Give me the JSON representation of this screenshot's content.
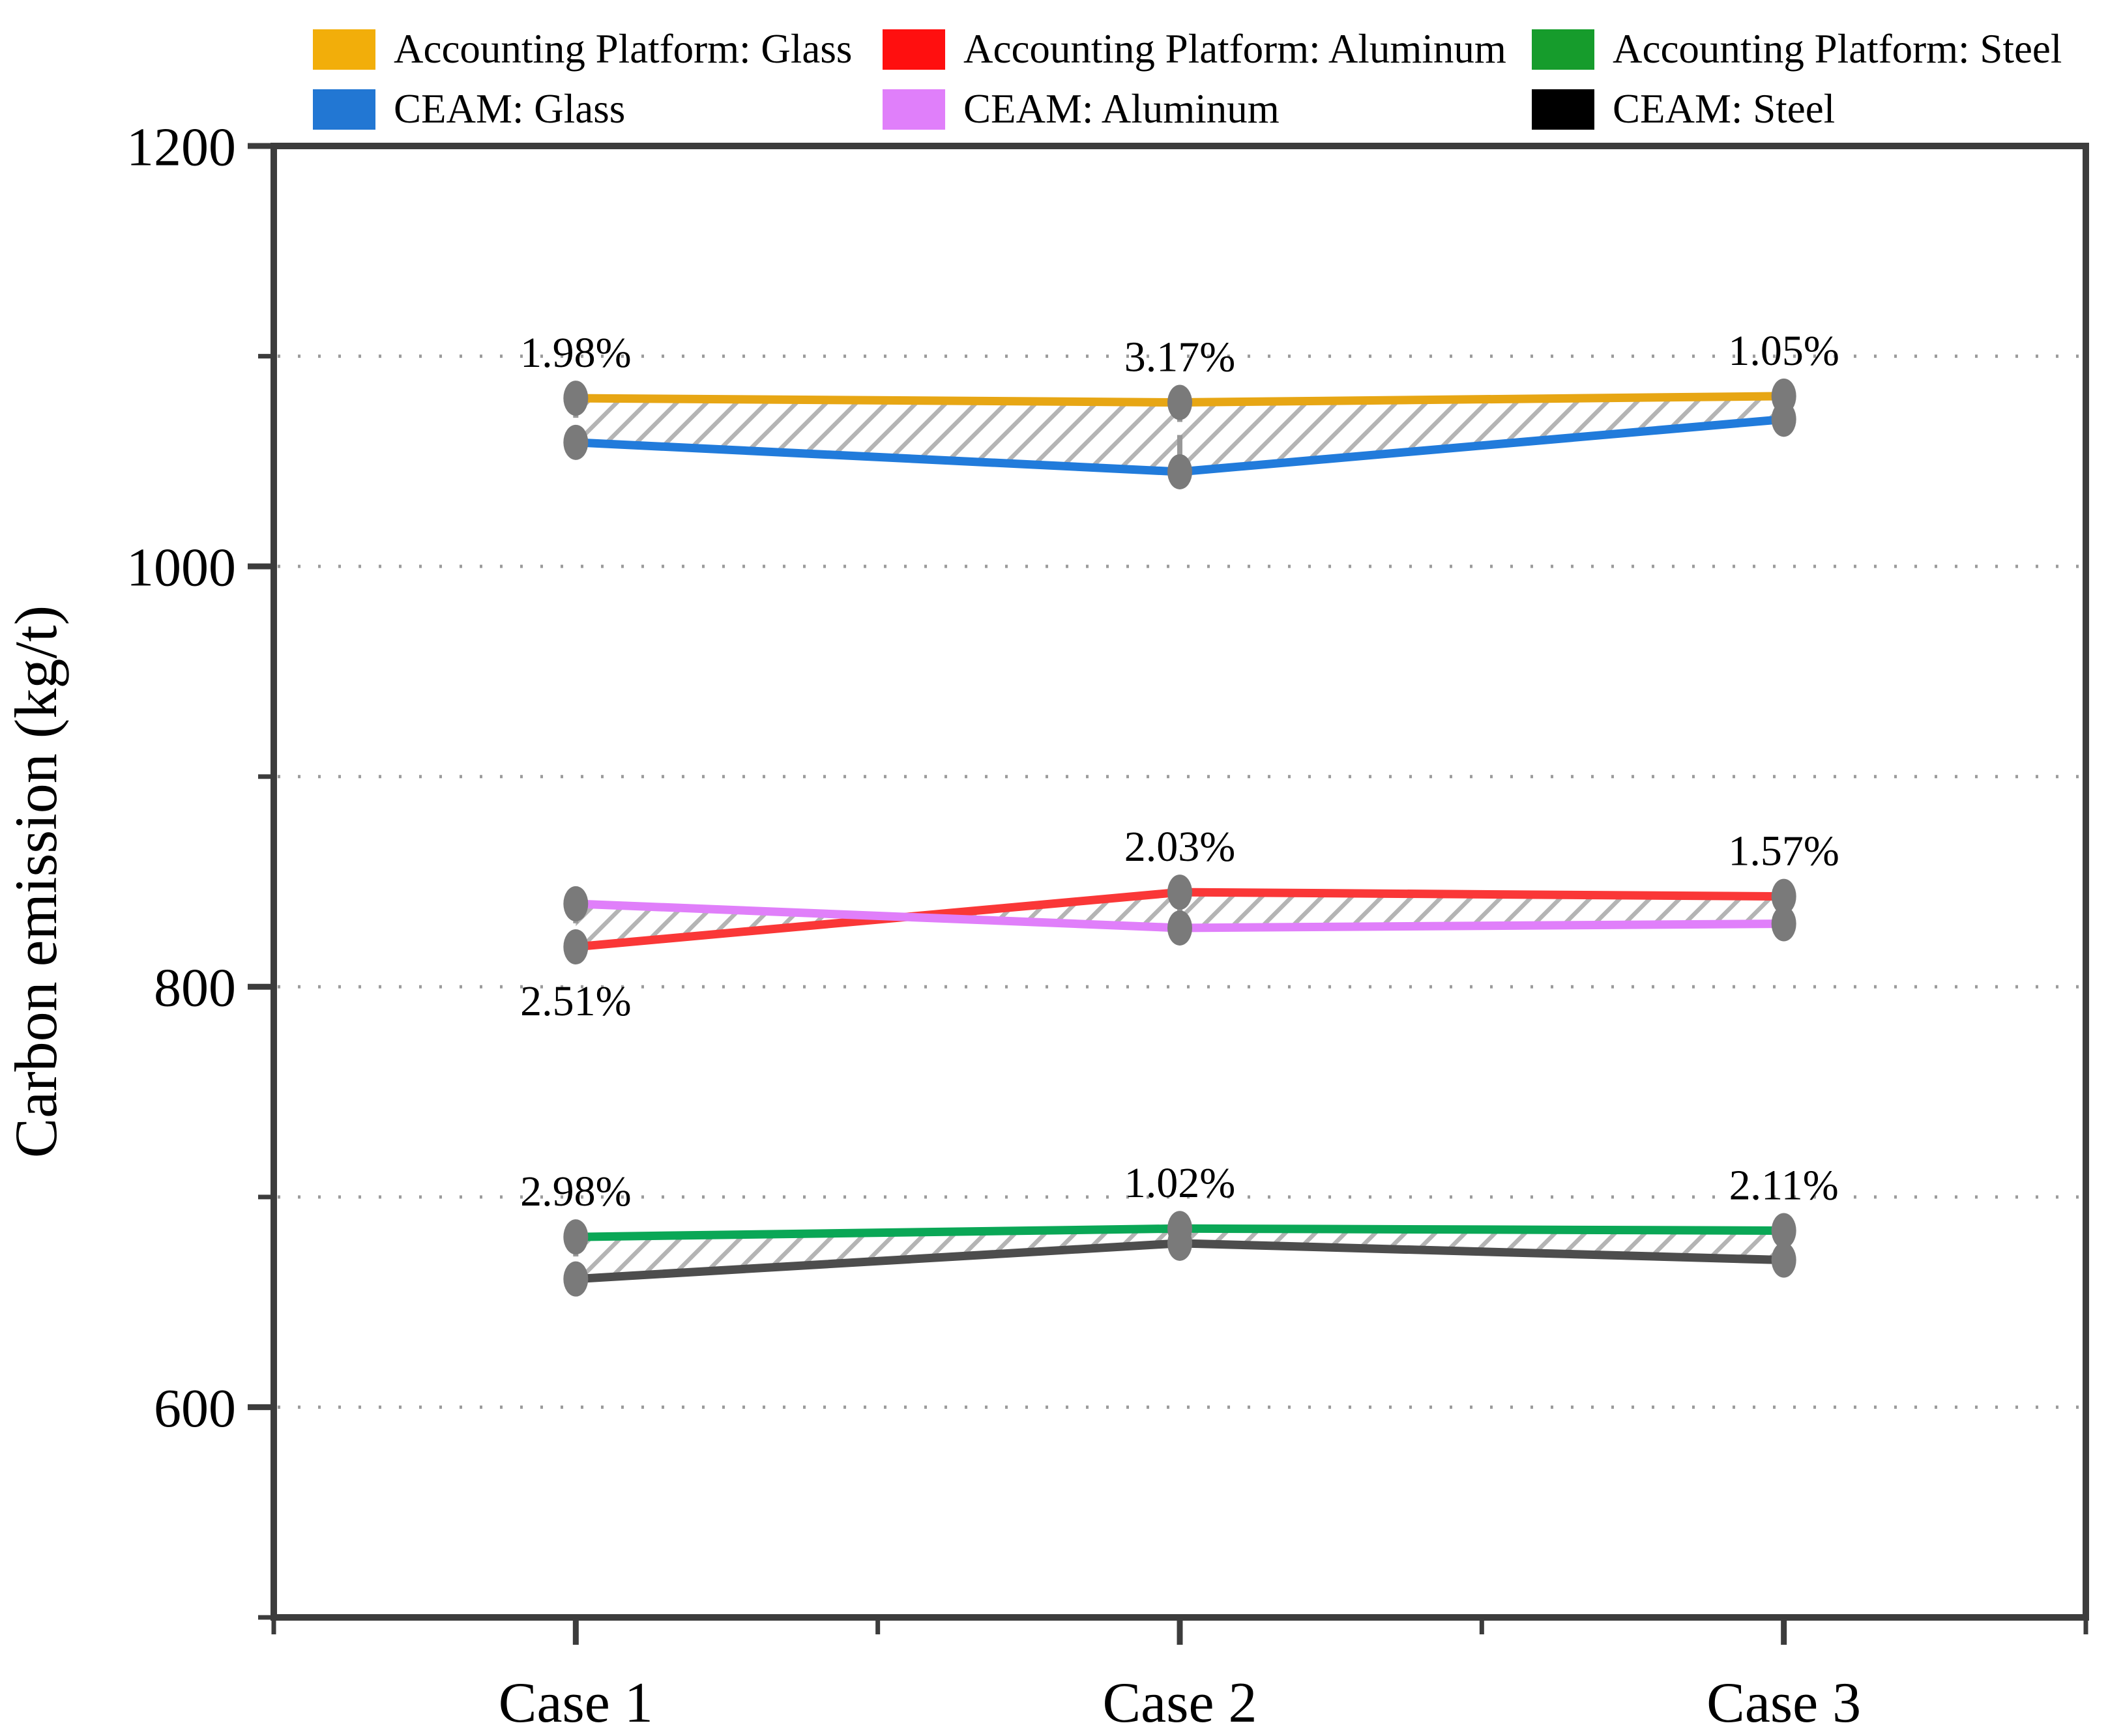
{
  "figure": {
    "ylabel": "Carbon emission (kg/t)",
    "legend": [
      {
        "label": "Accounting Platform: Glass",
        "color": "#F2AE0A"
      },
      {
        "label": "Accounting Platform: Aluminum",
        "color": "#FF0F0F"
      },
      {
        "label": "Accounting Platform: Steel",
        "color": "#169C2C"
      },
      {
        "label": "CEAM: Glass",
        "color": "#2277D3"
      },
      {
        "label": "CEAM: Aluminum",
        "color": "#E07FFA"
      },
      {
        "label": "CEAM: Steel",
        "color": "#000000"
      }
    ]
  },
  "chart_data": {
    "type": "line",
    "categories": [
      "Case 1",
      "Case 2",
      "Case 3"
    ],
    "xlabel": "",
    "ylabel": "Carbon emission (kg/t)",
    "ylim": [
      500,
      1200
    ],
    "yticks_major": [
      600,
      800,
      1000,
      1200
    ],
    "yticks_minor": [
      500,
      700,
      900,
      1100
    ],
    "grid_values": [
      600,
      700,
      800,
      900,
      1000,
      1100
    ],
    "grid_style": "dotted-horizontal",
    "legend_position": "top",
    "marker": {
      "shape": "ellipse",
      "color": "#7A7A7A"
    },
    "hatch": "/",
    "series": [
      {
        "name": "Accounting Platform: Glass",
        "color": "#E7A614",
        "values": [
          1080,
          1078,
          1081
        ]
      },
      {
        "name": "CEAM: Glass",
        "color": "#217BDB",
        "values": [
          1059,
          1045,
          1070
        ]
      },
      {
        "name": "Accounting Platform: Aluminum",
        "color": "#FA3737",
        "values": [
          819,
          845,
          843
        ]
      },
      {
        "name": "CEAM: Aluminum",
        "color": "#E07FFA",
        "values": [
          839.5,
          828,
          830
        ]
      },
      {
        "name": "Accounting Platform: Steel",
        "color": "#0AA756",
        "values": [
          681,
          685,
          684
        ]
      },
      {
        "name": "CEAM: Steel",
        "color": "#4D4D4D",
        "values": [
          661,
          678,
          670
        ]
      }
    ],
    "bands": [
      {
        "upper": "Accounting Platform: Glass",
        "lower": "CEAM: Glass",
        "annotations": [
          {
            "case": "Case 1",
            "text": "1.98%",
            "placement": "above"
          },
          {
            "case": "Case 2",
            "text": "3.17%",
            "placement": "above"
          },
          {
            "case": "Case 3",
            "text": "1.05%",
            "placement": "above"
          }
        ]
      },
      {
        "upper": "Accounting Platform: Aluminum",
        "lower": "CEAM: Aluminum",
        "annotations": [
          {
            "case": "Case 1",
            "text": "2.51%",
            "placement": "below"
          },
          {
            "case": "Case 2",
            "text": "2.03%",
            "placement": "above"
          },
          {
            "case": "Case 3",
            "text": "1.57%",
            "placement": "above"
          }
        ]
      },
      {
        "upper": "Accounting Platform: Steel",
        "lower": "CEAM: Steel",
        "annotations": [
          {
            "case": "Case 1",
            "text": "2.98%",
            "placement": "above"
          },
          {
            "case": "Case 2",
            "text": "1.02%",
            "placement": "above"
          },
          {
            "case": "Case 3",
            "text": "2.11%",
            "placement": "above"
          }
        ]
      }
    ]
  }
}
